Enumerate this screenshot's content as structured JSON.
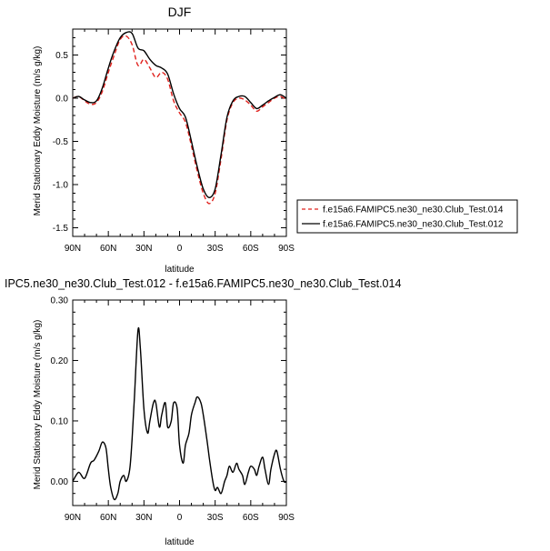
{
  "chart_data": [
    {
      "type": "line",
      "title": "DJF",
      "xlabel": "latitude",
      "ylabel": "Merid Stationary Eddy Moisture (m/s g/kg)",
      "xlim": [
        90,
        -90
      ],
      "ylim": [
        -1.6,
        0.8
      ],
      "x_ticks": [
        90,
        60,
        30,
        0,
        -30,
        -60,
        -90
      ],
      "x_tick_labels": [
        "90N",
        "60N",
        "30N",
        "0",
        "30S",
        "60S",
        "90S"
      ],
      "y_ticks": [
        -1.5,
        -1.0,
        -0.5,
        0.0,
        0.5
      ],
      "y_tick_labels": [
        "-1.5",
        "-1.0",
        "-0.5",
        "0.0",
        "0.5"
      ],
      "legend_position": "right",
      "series": [
        {
          "name": "f.e15a6.FAMIPC5.ne30_ne30.Club_Test.014",
          "color": "#e0201c",
          "dash": "dashed",
          "x": [
            90,
            85,
            80,
            75,
            70,
            65,
            60,
            55,
            50,
            45,
            40,
            35,
            30,
            25,
            20,
            15,
            10,
            5,
            0,
            -5,
            -10,
            -15,
            -20,
            -25,
            -30,
            -35,
            -40,
            -45,
            -50,
            -55,
            -60,
            -65,
            -70,
            -75,
            -80,
            -85,
            -90
          ],
          "values": [
            0.0,
            0.02,
            -0.03,
            -0.07,
            -0.05,
            0.08,
            0.3,
            0.5,
            0.68,
            0.72,
            0.62,
            0.38,
            0.45,
            0.35,
            0.24,
            0.3,
            0.22,
            -0.03,
            -0.17,
            -0.28,
            -0.55,
            -0.85,
            -1.1,
            -1.22,
            -1.1,
            -0.7,
            -0.25,
            -0.05,
            0.0,
            -0.02,
            -0.08,
            -0.15,
            -0.1,
            -0.05,
            0.0,
            0.02,
            -0.02
          ]
        },
        {
          "name": "f.e15a6.FAMIPC5.ne30_ne30.Club_Test.012",
          "color": "#000000",
          "dash": "solid",
          "x": [
            90,
            85,
            80,
            75,
            70,
            65,
            60,
            55,
            50,
            45,
            40,
            35,
            30,
            25,
            20,
            15,
            10,
            5,
            0,
            -5,
            -10,
            -15,
            -20,
            -25,
            -30,
            -35,
            -40,
            -45,
            -50,
            -55,
            -60,
            -65,
            -70,
            -75,
            -80,
            -85,
            -90
          ],
          "values": [
            0.0,
            0.02,
            -0.02,
            -0.05,
            -0.03,
            0.12,
            0.35,
            0.55,
            0.7,
            0.76,
            0.75,
            0.58,
            0.55,
            0.45,
            0.38,
            0.35,
            0.28,
            0.05,
            -0.12,
            -0.22,
            -0.5,
            -0.8,
            -1.05,
            -1.15,
            -1.05,
            -0.65,
            -0.22,
            -0.03,
            0.02,
            0.02,
            -0.05,
            -0.12,
            -0.08,
            -0.03,
            0.01,
            0.04,
            0.0
          ]
        }
      ]
    },
    {
      "type": "line",
      "title": "IPC5.ne30_ne30.Club_Test.012 - f.e15a6.FAMIPC5.ne30_ne30.Club_Test.014",
      "xlabel": "latitude",
      "ylabel": "Merid Stationary Eddy Moisture (m/s g/kg)",
      "xlim": [
        90,
        -90
      ],
      "ylim": [
        -0.04,
        0.3
      ],
      "x_ticks": [
        90,
        60,
        30,
        0,
        -30,
        -60,
        -90
      ],
      "x_tick_labels": [
        "90N",
        "60N",
        "30N",
        "0",
        "30S",
        "60S",
        "90S"
      ],
      "y_ticks": [
        0.0,
        0.1,
        0.2,
        0.3
      ],
      "y_tick_labels": [
        "0.00",
        "0.10",
        "0.20",
        "0.30"
      ],
      "series": [
        {
          "color": "#000000",
          "dash": "solid",
          "x": [
            90,
            85,
            80,
            75,
            72,
            68,
            65,
            62,
            60,
            58,
            55,
            52,
            50,
            47,
            45,
            42,
            40,
            38,
            35,
            33,
            30,
            27,
            25,
            22,
            20,
            17,
            15,
            12,
            10,
            7,
            5,
            2,
            0,
            -3,
            -5,
            -8,
            -10,
            -13,
            -15,
            -18,
            -20,
            -23,
            -25,
            -28,
            -30,
            -32,
            -35,
            -38,
            -40,
            -42,
            -45,
            -48,
            -50,
            -53,
            -55,
            -58,
            -60,
            -63,
            -65,
            -67,
            -70,
            -72,
            -75,
            -77,
            -80,
            -82,
            -85,
            -88,
            -90
          ],
          "values": [
            0.0,
            0.015,
            0.005,
            0.03,
            0.035,
            0.05,
            0.065,
            0.055,
            0.02,
            -0.01,
            -0.03,
            -0.02,
            0.0,
            0.01,
            0.0,
            0.02,
            0.07,
            0.14,
            0.25,
            0.22,
            0.12,
            0.08,
            0.1,
            0.13,
            0.13,
            0.09,
            0.11,
            0.13,
            0.09,
            0.1,
            0.13,
            0.12,
            0.06,
            0.03,
            0.06,
            0.08,
            0.11,
            0.13,
            0.14,
            0.13,
            0.11,
            0.07,
            0.04,
            0.0,
            -0.015,
            -0.01,
            -0.02,
            0.0,
            0.01,
            0.025,
            0.015,
            0.03,
            0.02,
            0.01,
            -0.005,
            0.015,
            0.025,
            0.02,
            0.01,
            0.025,
            0.04,
            0.02,
            -0.005,
            0.02,
            0.045,
            0.05,
            0.02,
            0.0,
            0.0
          ]
        }
      ]
    }
  ]
}
